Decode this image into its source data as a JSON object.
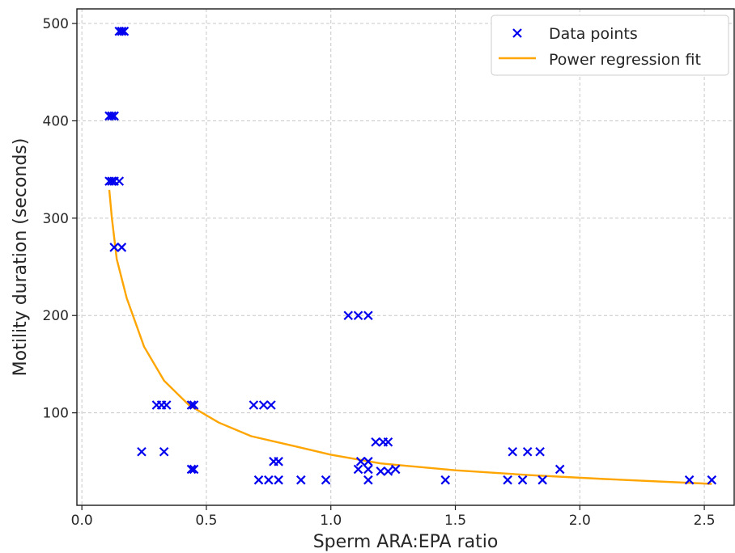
{
  "chart_data": {
    "type": "scatter",
    "title": "",
    "xlabel": "Sperm ARA:EPA ratio",
    "ylabel": "Motility duration (seconds)",
    "xlim": [
      -0.02,
      2.62
    ],
    "ylim": [
      5,
      515
    ],
    "x_ticks": [
      0.0,
      0.5,
      1.0,
      1.5,
      2.0,
      2.5
    ],
    "x_tick_labels": [
      "0.0",
      "0.5",
      "1.0",
      "1.5",
      "2.0",
      "2.5"
    ],
    "y_ticks": [
      100,
      200,
      300,
      400,
      500
    ],
    "y_tick_labels": [
      "100",
      "200",
      "300",
      "400",
      "500"
    ],
    "grid": true,
    "legend": {
      "position": "top-right",
      "entries": [
        {
          "label": "Data points",
          "marker": "x",
          "color": "#0000ee"
        },
        {
          "label": "Power regression fit",
          "marker": "line",
          "color": "#ffa500"
        }
      ]
    },
    "series": [
      {
        "name": "Data points",
        "kind": "scatter",
        "color": "#0000ee",
        "points": [
          [
            0.15,
            492
          ],
          [
            0.16,
            492
          ],
          [
            0.17,
            492
          ],
          [
            0.11,
            405
          ],
          [
            0.12,
            405
          ],
          [
            0.13,
            405
          ],
          [
            0.11,
            338
          ],
          [
            0.12,
            338
          ],
          [
            0.13,
            338
          ],
          [
            0.15,
            338
          ],
          [
            0.13,
            270
          ],
          [
            0.16,
            270
          ],
          [
            1.07,
            200
          ],
          [
            1.11,
            200
          ],
          [
            1.15,
            200
          ],
          [
            0.3,
            108
          ],
          [
            0.32,
            108
          ],
          [
            0.34,
            108
          ],
          [
            0.44,
            108
          ],
          [
            0.45,
            108
          ],
          [
            0.69,
            108
          ],
          [
            0.73,
            108
          ],
          [
            0.76,
            108
          ],
          [
            0.24,
            60
          ],
          [
            0.33,
            60
          ],
          [
            0.44,
            42
          ],
          [
            0.45,
            42
          ],
          [
            1.18,
            70
          ],
          [
            1.21,
            70
          ],
          [
            1.23,
            70
          ],
          [
            1.12,
            50
          ],
          [
            1.15,
            50
          ],
          [
            0.77,
            50
          ],
          [
            0.79,
            50
          ],
          [
            1.11,
            42
          ],
          [
            1.15,
            42
          ],
          [
            1.2,
            40
          ],
          [
            1.23,
            40
          ],
          [
            1.26,
            42
          ],
          [
            0.71,
            31
          ],
          [
            0.75,
            31
          ],
          [
            0.79,
            31
          ],
          [
            0.88,
            31
          ],
          [
            0.98,
            31
          ],
          [
            1.15,
            31
          ],
          [
            1.46,
            31
          ],
          [
            1.71,
            31
          ],
          [
            1.77,
            31
          ],
          [
            1.85,
            31
          ],
          [
            1.73,
            60
          ],
          [
            1.79,
            60
          ],
          [
            1.84,
            60
          ],
          [
            1.92,
            42
          ],
          [
            2.44,
            31
          ],
          [
            2.53,
            31
          ]
        ]
      },
      {
        "name": "Power regression fit",
        "kind": "line",
        "color": "#ffa500",
        "x": [
          0.11,
          0.12,
          0.14,
          0.18,
          0.25,
          0.33,
          0.43,
          0.55,
          0.68,
          0.85,
          1.0,
          1.2,
          1.5,
          1.8,
          2.1,
          2.53
        ],
        "y": [
          329,
          301,
          258,
          218,
          168,
          133,
          108,
          90,
          76,
          66,
          57,
          48,
          41,
          36,
          32,
          27
        ]
      }
    ]
  }
}
